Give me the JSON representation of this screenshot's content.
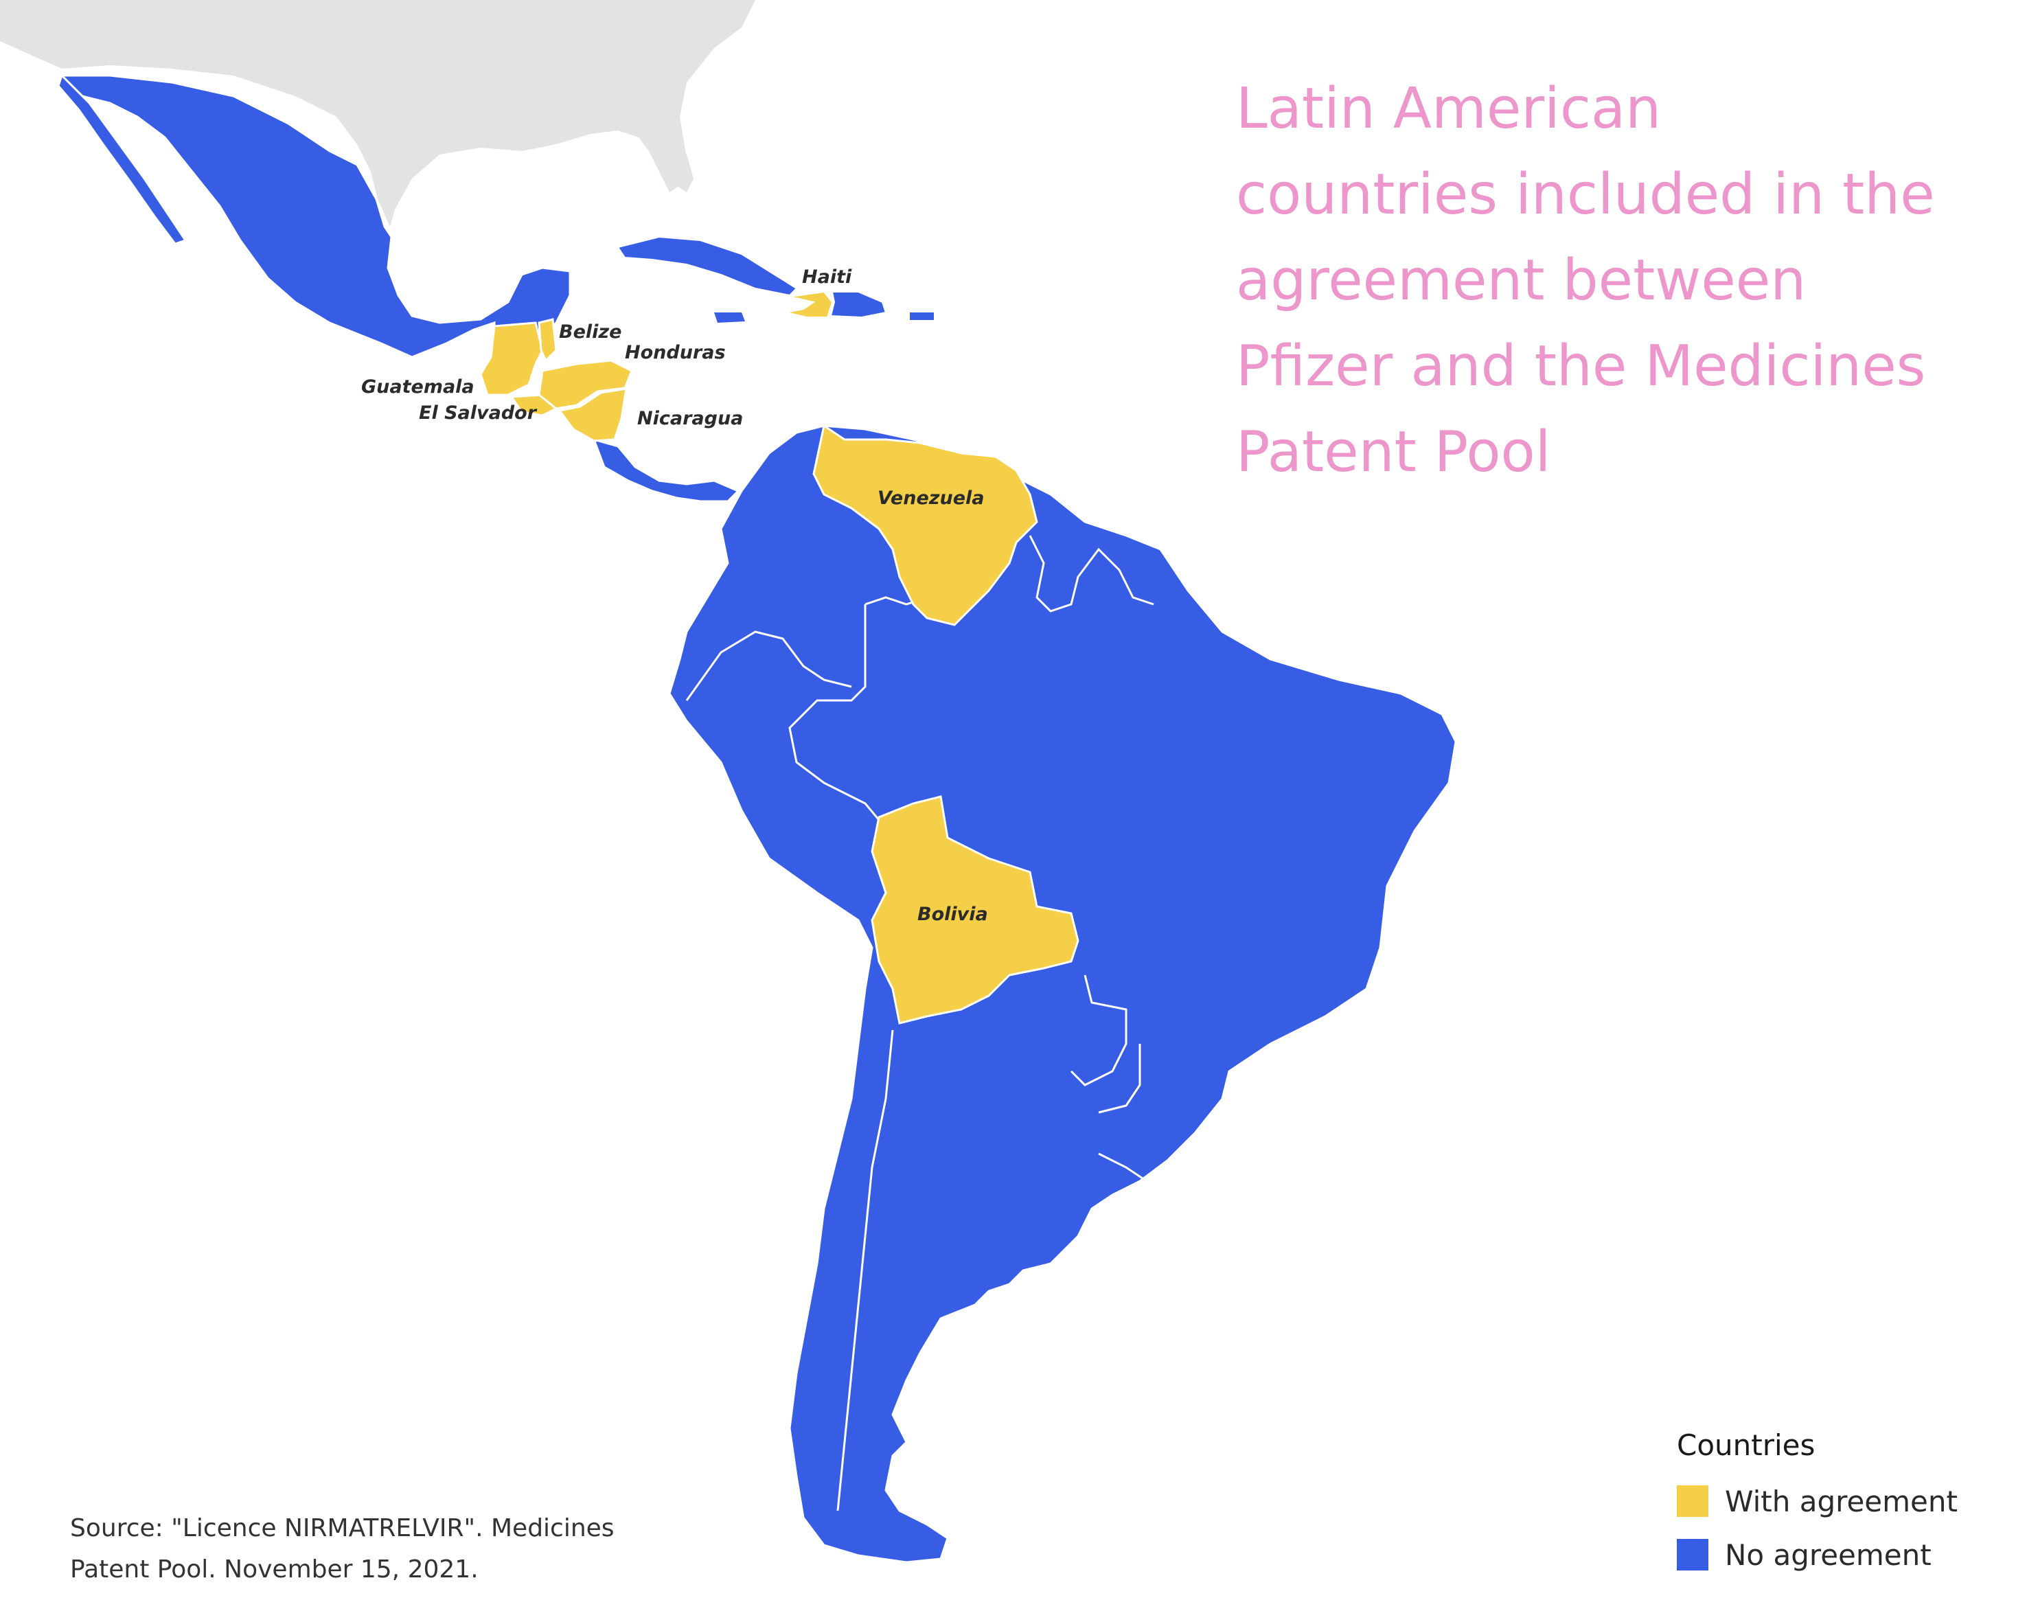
{
  "title_lines": [
    "Latin American",
    "countries included in the",
    "agreement between",
    "Pfizer and the Medicines",
    "Patent Pool"
  ],
  "colors": {
    "with_agreement": "#f6cf49",
    "no_agreement": "#375de5",
    "north_america_land": "#e3e3e3",
    "border": "#ffffff",
    "title": "#ec96cc"
  },
  "country_labels": {
    "haiti": "Haiti",
    "belize": "Belize",
    "honduras": "Honduras",
    "guatemala": "Guatemala",
    "el_salvador": "El Salvador",
    "nicaragua": "Nicaragua",
    "venezuela": "Venezuela",
    "bolivia": "Bolivia"
  },
  "legend": {
    "title": "Countries",
    "items": [
      {
        "label": "With agreement",
        "color": "#f6cf49"
      },
      {
        "label": "No agreement",
        "color": "#375de5"
      }
    ]
  },
  "source_lines": [
    "Source: \"Licence NIRMATRELVIR\". Medicines",
    "Patent Pool. November 15, 2021."
  ]
}
